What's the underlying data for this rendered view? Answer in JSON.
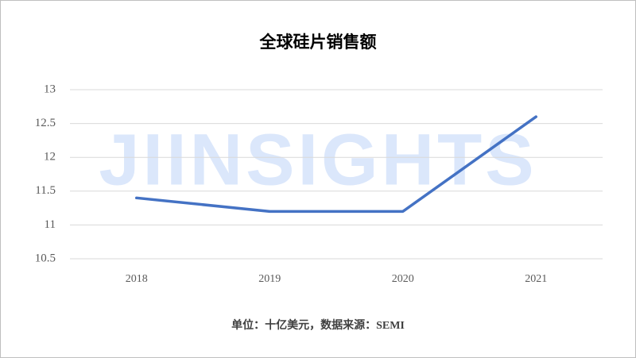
{
  "chart_data": {
    "type": "line",
    "title": "全球硅片销售额",
    "categories": [
      "2018",
      "2019",
      "2020",
      "2021"
    ],
    "series": [
      {
        "name": "全球硅片销售额",
        "color": "#4472c4",
        "values": [
          11.4,
          11.2,
          11.2,
          12.6
        ]
      }
    ],
    "ylim": [
      10.5,
      13
    ],
    "yticks": [
      10.5,
      11,
      11.5,
      12,
      12.5,
      13
    ],
    "grid": true,
    "note": "单位：十亿美元，数据来源：SEMI",
    "watermark": "JIINSIGHTS"
  }
}
